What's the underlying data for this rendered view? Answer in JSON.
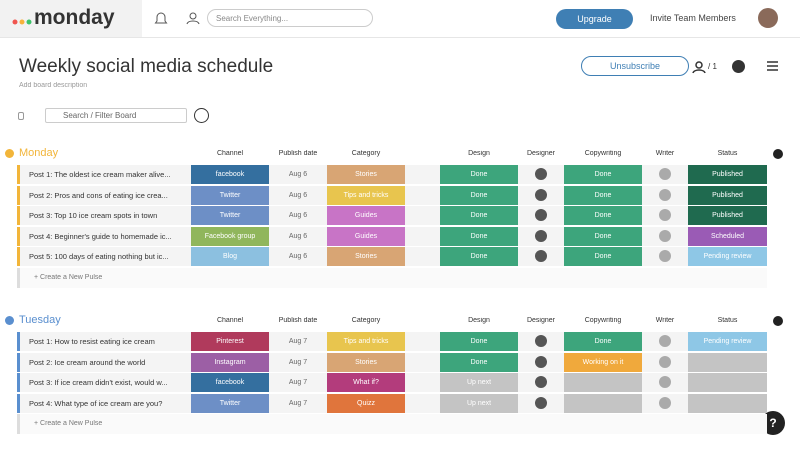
{
  "header": {
    "logo": "monday",
    "search_placeholder": "Search Everything...",
    "upgrade": "Upgrade",
    "invite": "Invite Team Members"
  },
  "board": {
    "title": "Weekly social media schedule",
    "description": "Add board description",
    "unsubscribe": "Unsubscribe",
    "members_count": "/ 1",
    "filter_placeholder": "Search / Filter Board"
  },
  "groups": [
    {
      "name": "Monday",
      "color": "#f2b53a",
      "columns": [
        "Channel",
        "Publish date",
        "Category",
        "Design",
        "Designer",
        "Copywriting",
        "Writer",
        "Status"
      ],
      "create": "+ Create a New Pulse",
      "rows": [
        {
          "title": "Post 1: The oldest ice cream maker alive...",
          "channel": {
            "text": "facebook",
            "color": "#346f9f"
          },
          "date": "Aug 6",
          "category": {
            "text": "Stories",
            "color": "#d8a574"
          },
          "design": {
            "text": "Done",
            "color": "#3da57c"
          },
          "copywriting": {
            "text": "Done",
            "color": "#3da57c"
          },
          "status": {
            "text": "Published",
            "color": "#1f6a4f"
          }
        },
        {
          "title": "Post 2: Pros and cons of eating ice crea...",
          "channel": {
            "text": "Twitter",
            "color": "#6d8fc6"
          },
          "date": "Aug 6",
          "category": {
            "text": "Tips and tricks",
            "color": "#e8c54e"
          },
          "design": {
            "text": "Done",
            "color": "#3da57c"
          },
          "copywriting": {
            "text": "Done",
            "color": "#3da57c"
          },
          "status": {
            "text": "Published",
            "color": "#1f6a4f"
          }
        },
        {
          "title": "Post 3: Top 10 ice cream spots in town",
          "channel": {
            "text": "Twitter",
            "color": "#6d8fc6"
          },
          "date": "Aug 6",
          "category": {
            "text": "Guides",
            "color": "#c874c6"
          },
          "design": {
            "text": "Done",
            "color": "#3da57c"
          },
          "copywriting": {
            "text": "Done",
            "color": "#3da57c"
          },
          "status": {
            "text": "Published",
            "color": "#1f6a4f"
          }
        },
        {
          "title": "Post 4: Beginner's guide to homemade ic...",
          "channel": {
            "text": "Facebook group",
            "color": "#90b65c"
          },
          "date": "Aug 6",
          "category": {
            "text": "Guides",
            "color": "#c874c6"
          },
          "design": {
            "text": "Done",
            "color": "#3da57c"
          },
          "copywriting": {
            "text": "Done",
            "color": "#3da57c"
          },
          "status": {
            "text": "Scheduled",
            "color": "#9a5bb5"
          }
        },
        {
          "title": "Post 5: 100 days of eating nothing but ic...",
          "channel": {
            "text": "Blog",
            "color": "#8cc0e0"
          },
          "date": "Aug 6",
          "category": {
            "text": "Stories",
            "color": "#d8a574"
          },
          "design": {
            "text": "Done",
            "color": "#3da57c"
          },
          "copywriting": {
            "text": "Done",
            "color": "#3da57c"
          },
          "status": {
            "text": "Pending review",
            "color": "#8ec7e6"
          }
        }
      ]
    },
    {
      "name": "Tuesday",
      "color": "#5a8fcf",
      "columns": [
        "Channel",
        "Publish date",
        "Category",
        "Design",
        "Designer",
        "Copywriting",
        "Writer",
        "Status"
      ],
      "create": "+ Create a New Pulse",
      "rows": [
        {
          "title": "Post 1: How to resist eating ice cream",
          "channel": {
            "text": "Pinterest",
            "color": "#b03a5c"
          },
          "date": "Aug 7",
          "category": {
            "text": "Tips and tricks",
            "color": "#e8c54e"
          },
          "design": {
            "text": "Done",
            "color": "#3da57c"
          },
          "copywriting": {
            "text": "Done",
            "color": "#3da57c"
          },
          "status": {
            "text": "Pending review",
            "color": "#8ec7e6"
          }
        },
        {
          "title": "Post 2: Ice cream around the world",
          "channel": {
            "text": "Instagram",
            "color": "#9c5fa5"
          },
          "date": "Aug 7",
          "category": {
            "text": "Stories",
            "color": "#d8a574"
          },
          "design": {
            "text": "Done",
            "color": "#3da57c"
          },
          "copywriting": {
            "text": "Working on it",
            "color": "#f0a93c"
          },
          "status": {
            "color": "#c4c4c4"
          }
        },
        {
          "title": "Post 3: If ice cream didn't exist, would w...",
          "channel": {
            "text": "facebook",
            "color": "#346f9f"
          },
          "date": "Aug 7",
          "category": {
            "text": "What if?",
            "color": "#b33c7c"
          },
          "design": {
            "text": "Up next",
            "color": "#c4c4c4"
          },
          "copywriting": {
            "color": "#c4c4c4"
          },
          "status": {
            "color": "#c4c4c4"
          }
        },
        {
          "title": "Post 4: What type of ice cream are you?",
          "channel": {
            "text": "Twitter",
            "color": "#6d8fc6"
          },
          "date": "Aug 7",
          "category": {
            "text": "Quizz",
            "color": "#e0753c"
          },
          "design": {
            "text": "Up next",
            "color": "#c4c4c4"
          },
          "copywriting": {
            "color": "#c4c4c4"
          },
          "status": {
            "color": "#c4c4c4"
          }
        }
      ]
    }
  ]
}
